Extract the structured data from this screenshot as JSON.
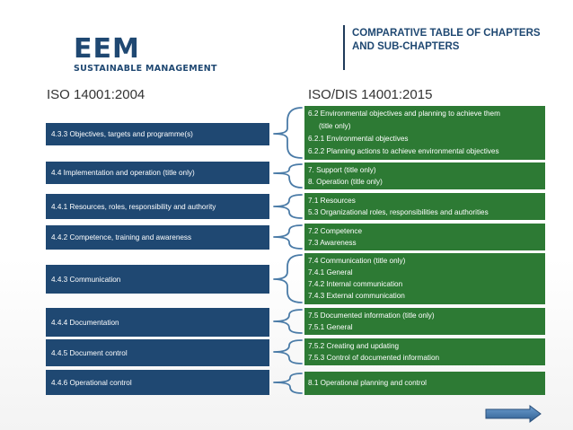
{
  "logo": {
    "main": "EEM",
    "sub": "SUSTAINABLE MANAGEMENT"
  },
  "header": {
    "title_line1": "COMPARATIVE TABLE OF CHAPTERS",
    "title_line2": "AND SUB-CHAPTERS"
  },
  "columns": {
    "left_title": "ISO 14001:2004",
    "right_title": "ISO/DIS 14001:2015"
  },
  "colors": {
    "left_box": "#1f4872",
    "right_box": "#2d7a34",
    "brace": "#4a7ba7"
  },
  "rows": [
    {
      "left": "4.3.3 Objectives, targets and programme(s)",
      "right": [
        "6.2  Environmental objectives and planning to achieve them",
        "(title only)",
        "6.2.1   Environmental objectives",
        "6.2.2   Planning actions to achieve environmental objectives"
      ]
    },
    {
      "left": "4.4 Implementation and operation (title only)",
      "right": [
        "7.    Support (title only)",
        "8.    Operation (title only)"
      ]
    },
    {
      "left": "4.4.1  Resources, roles, responsibility and authority",
      "right": [
        "7.1  Resources",
        "5.3   Organizational roles, responsibilities and authorities"
      ]
    },
    {
      "left": "4.4.2  Competence, training and awareness",
      "right": [
        "7.2  Competence",
        "7.3  Awareness"
      ]
    },
    {
      "left": "4.4.3 Communication",
      "right": [
        "7.4  Communication (title only)",
        "7.4.1  General",
        "7.4.2  Internal communication",
        "7.4.3  External communication"
      ]
    },
    {
      "left": "4.4.4 Documentation",
      "right": [
        "7.5  Documented information (title only)",
        "7.5.1  General"
      ]
    },
    {
      "left": "4.4.5 Document control",
      "right": [
        "7.5.2  Creating and updating",
        "7.5.3  Control of documented information"
      ]
    },
    {
      "left": "4.4.6 Operational control",
      "right": [
        "8.1 Operational planning and control"
      ]
    }
  ]
}
